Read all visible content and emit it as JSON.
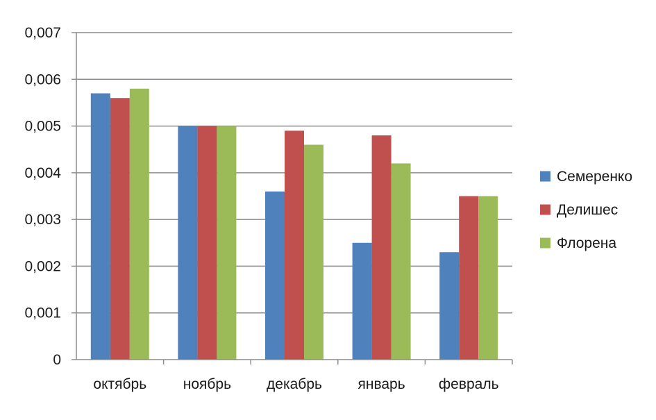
{
  "chart_data": {
    "type": "bar",
    "title": "",
    "xlabel": "",
    "ylabel": "",
    "categories": [
      "октябрь",
      "ноябрь",
      "декабрь",
      "январь",
      "февраль"
    ],
    "series": [
      {
        "name": "Семеренко",
        "color": "#4f81bd",
        "values": [
          0.0057,
          0.005,
          0.0036,
          0.0025,
          0.0023
        ]
      },
      {
        "name": "Делишес",
        "color": "#c0504d",
        "values": [
          0.0056,
          0.005,
          0.0049,
          0.0048,
          0.0035
        ]
      },
      {
        "name": "Флорена",
        "color": "#9bbb59",
        "values": [
          0.0058,
          0.005,
          0.0046,
          0.0042,
          0.0035
        ]
      }
    ],
    "ylim": [
      0,
      0.007
    ],
    "y_ticks": [
      0,
      0.001,
      0.002,
      0.003,
      0.004,
      0.005,
      0.006,
      0.007
    ],
    "y_tick_labels": [
      "0",
      "0,001",
      "0,002",
      "0,003",
      "0,004",
      "0,005",
      "0,006",
      "0,007"
    ],
    "grid": true,
    "legend_position": "right"
  },
  "colors": {
    "gridline": "#8c8c8c",
    "axis": "#8c8c8c"
  }
}
